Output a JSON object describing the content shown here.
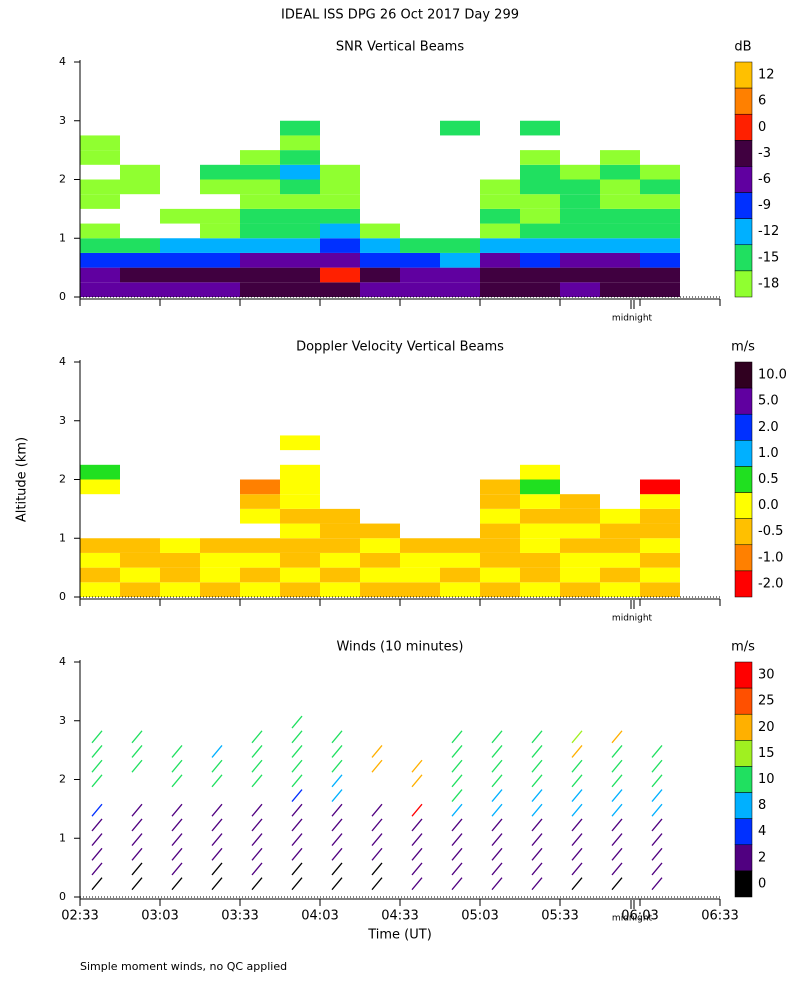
{
  "page_title": "IDEAL ISS DPG  26 Oct 2017 Day 299",
  "footnote": "Simple moment winds, no QC applied",
  "chart_data": [
    {
      "type": "field",
      "title": "SNR Vertical Beams",
      "ylim": [
        0,
        4
      ],
      "yticks": [
        0,
        1,
        2,
        3,
        4
      ],
      "annotation": "midnight",
      "y": [
        0,
        0.25,
        0.5,
        0.75,
        1,
        1.25,
        1.5,
        1.75,
        2,
        2.25,
        2.5,
        2.75
      ],
      "values": [
        [
          -6,
          -6,
          -5,
          -5,
          -3,
          -3,
          -2,
          -4,
          -6,
          -6,
          -3,
          -2,
          -4,
          -3,
          -2,
          null
        ],
        [
          -4,
          -3,
          -3,
          -2,
          -2,
          -2,
          0,
          -3,
          -5,
          -5,
          -1,
          -2,
          -3,
          -2,
          -1,
          null
        ],
        [
          -9,
          -8,
          -7,
          -7,
          -5,
          -6,
          -5,
          -8,
          -9,
          -10,
          -6,
          -7,
          -6,
          -6,
          -7,
          null
        ],
        [
          -13,
          -13,
          -12,
          -12,
          -11,
          -10,
          -9,
          -12,
          -13,
          -14,
          -12,
          -12,
          -12,
          -11,
          -12,
          null
        ],
        [
          -16,
          null,
          null,
          -16,
          -15,
          -14,
          -12,
          -16,
          null,
          null,
          -16,
          -15,
          -14,
          -15,
          -15,
          null
        ],
        [
          null,
          null,
          -17,
          -16,
          -15,
          -14,
          -15,
          null,
          null,
          null,
          -15,
          -16,
          -15,
          -14,
          -15,
          null
        ],
        [
          -17,
          null,
          null,
          null,
          -16,
          -16,
          -17,
          null,
          null,
          null,
          -16,
          -16,
          -15,
          -16,
          -16,
          null
        ],
        [
          -16,
          -17,
          null,
          -17,
          -16,
          -13,
          -16,
          null,
          null,
          null,
          -17,
          -14,
          -15,
          -16,
          -15,
          null
        ],
        [
          null,
          -16,
          null,
          -15,
          -15,
          -12,
          -17,
          null,
          null,
          null,
          null,
          -15,
          -16,
          -15,
          -16,
          null
        ],
        [
          -17,
          null,
          null,
          null,
          -16,
          -15,
          null,
          null,
          null,
          null,
          null,
          -16,
          null,
          -16,
          null,
          null
        ],
        [
          -17,
          null,
          null,
          null,
          null,
          -17,
          null,
          null,
          null,
          null,
          null,
          null,
          null,
          null,
          null,
          null
        ],
        [
          null,
          null,
          null,
          null,
          null,
          -15,
          null,
          null,
          null,
          -14,
          null,
          -15,
          null,
          null,
          null,
          null
        ]
      ],
      "colorbar": {
        "label": "dB",
        "levels": [
          12,
          6,
          0,
          -3,
          -6,
          -9,
          -12,
          -15,
          -18
        ],
        "colors": [
          "#ffc000",
          "#ff8000",
          "#ff2000",
          "#400040",
          "#6000a0",
          "#0030ff",
          "#00b0ff",
          "#20e060",
          "#90ff30"
        ]
      }
    },
    {
      "type": "field",
      "title": "Doppler Velocity Vertical Beams",
      "ylabel": "Altitude (km)",
      "ylim": [
        0,
        4
      ],
      "yticks": [
        0,
        1,
        2,
        3,
        4
      ],
      "annotation": "midnight",
      "y": [
        0,
        0.25,
        0.5,
        0.75,
        1,
        1.25,
        1.5,
        1.75,
        2,
        2.25,
        2.5,
        2.75
      ],
      "values": [
        [
          0.2,
          -0.3,
          0.2,
          -0.3,
          0.2,
          -0.3,
          0.2,
          -0.3,
          -0.3,
          0.2,
          -0.3,
          0.2,
          -0.3,
          0.2,
          -0.3,
          null
        ],
        [
          -0.3,
          0.2,
          -0.3,
          0.2,
          -0.3,
          0.2,
          -0.3,
          0.2,
          0.2,
          -0.3,
          0.2,
          -0.3,
          0.2,
          -0.3,
          0.2,
          null
        ],
        [
          0.2,
          -0.3,
          -0.3,
          0.2,
          0.2,
          -0.3,
          0.2,
          -0.3,
          0.2,
          0.2,
          -0.3,
          -0.3,
          0.2,
          0.2,
          -0.3,
          null
        ],
        [
          -0.3,
          -0.3,
          0.2,
          -0.3,
          -0.3,
          -0.3,
          -0.3,
          0.2,
          -0.3,
          -0.3,
          -0.3,
          0.2,
          -0.3,
          -0.3,
          0.2,
          null
        ],
        [
          null,
          null,
          null,
          null,
          null,
          0.2,
          -0.3,
          -0.3,
          null,
          null,
          -0.3,
          0.2,
          0.2,
          -0.3,
          -0.3,
          null
        ],
        [
          null,
          null,
          null,
          null,
          0.2,
          -0.3,
          -0.3,
          null,
          null,
          null,
          0.2,
          -0.3,
          -0.3,
          0.2,
          -0.3,
          null
        ],
        [
          null,
          null,
          null,
          null,
          -0.3,
          0.2,
          null,
          null,
          null,
          null,
          -0.3,
          0.2,
          -0.3,
          null,
          0.2,
          null
        ],
        [
          0.2,
          null,
          null,
          null,
          -0.7,
          0.3,
          null,
          null,
          null,
          null,
          -0.3,
          0.7,
          null,
          null,
          -1.5,
          null
        ],
        [
          0.7,
          null,
          null,
          null,
          null,
          0.2,
          null,
          null,
          null,
          null,
          null,
          0.2,
          null,
          null,
          null,
          null
        ],
        [
          null,
          null,
          null,
          null,
          null,
          null,
          null,
          null,
          null,
          null,
          null,
          null,
          null,
          null,
          null,
          null
        ],
        [
          null,
          null,
          null,
          null,
          null,
          0.2,
          null,
          null,
          null,
          null,
          null,
          null,
          null,
          null,
          null,
          null
        ],
        [
          null,
          null,
          null,
          null,
          null,
          null,
          null,
          null,
          null,
          null,
          null,
          null,
          null,
          null,
          null,
          null
        ]
      ],
      "colorbar": {
        "label": "m/s",
        "levels": [
          {
            "value": 10,
            "label": "10.0"
          },
          {
            "value": 5,
            "label": "5.0"
          },
          {
            "value": 2,
            "label": "2.0"
          },
          {
            "value": 1,
            "label": "1.0"
          },
          {
            "value": 0.5,
            "label": "0.5"
          },
          {
            "value": 0,
            "label": "0.0"
          },
          {
            "value": -0.5,
            "label": "-0.5"
          },
          {
            "value": -1,
            "label": "-1.0"
          },
          {
            "value": -2,
            "label": "-2.0"
          }
        ],
        "colors": [
          "#300020",
          "#6000a0",
          "#0030ff",
          "#00b0ff",
          "#20e020",
          "#ffff00",
          "#ffc000",
          "#ff8000",
          "#ff0000"
        ]
      }
    },
    {
      "type": "barbs",
      "title": "Winds (10 minutes)",
      "xlabel": "Time (UT)",
      "ylim": [
        0,
        4
      ],
      "yticks": [
        0,
        1,
        2,
        3,
        4
      ],
      "annotation": "midnight",
      "xticks": [
        "02:33",
        "03:03",
        "03:33",
        "04:03",
        "04:33",
        "05:03",
        "05:33",
        "06:03",
        "06:33"
      ],
      "y": [
        0,
        0.25,
        0.5,
        0.75,
        1,
        1.25,
        1.5,
        1.75,
        2,
        2.25,
        2.5,
        2.75
      ],
      "values": [
        [
          1,
          1,
          1,
          1,
          1,
          1,
          1,
          1,
          2,
          3,
          3,
          2,
          1,
          1,
          2,
          null
        ],
        [
          2,
          1,
          2,
          1,
          2,
          1,
          1,
          1,
          3,
          3,
          3,
          3,
          2,
          2,
          3,
          null
        ],
        [
          3,
          3,
          3,
          3,
          3,
          3,
          2,
          3,
          3,
          3,
          3,
          3,
          3,
          3,
          3,
          null
        ],
        [
          3,
          3,
          3,
          3,
          3,
          3,
          3,
          3,
          3,
          3,
          3,
          3,
          3,
          3,
          3,
          null
        ],
        [
          3,
          3,
          3,
          3,
          3,
          3,
          3,
          3,
          3,
          3,
          3,
          3,
          3,
          3,
          3,
          null
        ],
        [
          5,
          3,
          3,
          3,
          3,
          3,
          3,
          3,
          30,
          9,
          9,
          9,
          9,
          9,
          9,
          null
        ],
        [
          null,
          null,
          null,
          null,
          null,
          5,
          9,
          null,
          null,
          11,
          9,
          9,
          9,
          9,
          9,
          null
        ],
        [
          12,
          null,
          12,
          12,
          12,
          12,
          9,
          null,
          20,
          14,
          12,
          12,
          10,
          10,
          11,
          null
        ],
        [
          14,
          12,
          12,
          13,
          12,
          13,
          12,
          22,
          22,
          14,
          12,
          13,
          12,
          12,
          11,
          null
        ],
        [
          13,
          12,
          13,
          9,
          12,
          13,
          12,
          21,
          null,
          11,
          12,
          13,
          20,
          12,
          11,
          null
        ],
        [
          12,
          12,
          null,
          null,
          13,
          13,
          13,
          null,
          null,
          13,
          12,
          13,
          15,
          22,
          null,
          null
        ],
        [
          null,
          null,
          null,
          null,
          null,
          14,
          null,
          null,
          null,
          null,
          null,
          null,
          null,
          null,
          null,
          null
        ]
      ],
      "colorbar": {
        "label": "m/s",
        "levels": [
          30,
          25,
          20,
          15,
          10,
          8,
          4,
          2,
          0
        ],
        "colors": [
          "#ff0000",
          "#ff5000",
          "#ffb000",
          "#a0f020",
          "#20e060",
          "#00b0ff",
          "#0030ff",
          "#500080",
          "#000000"
        ]
      }
    }
  ]
}
